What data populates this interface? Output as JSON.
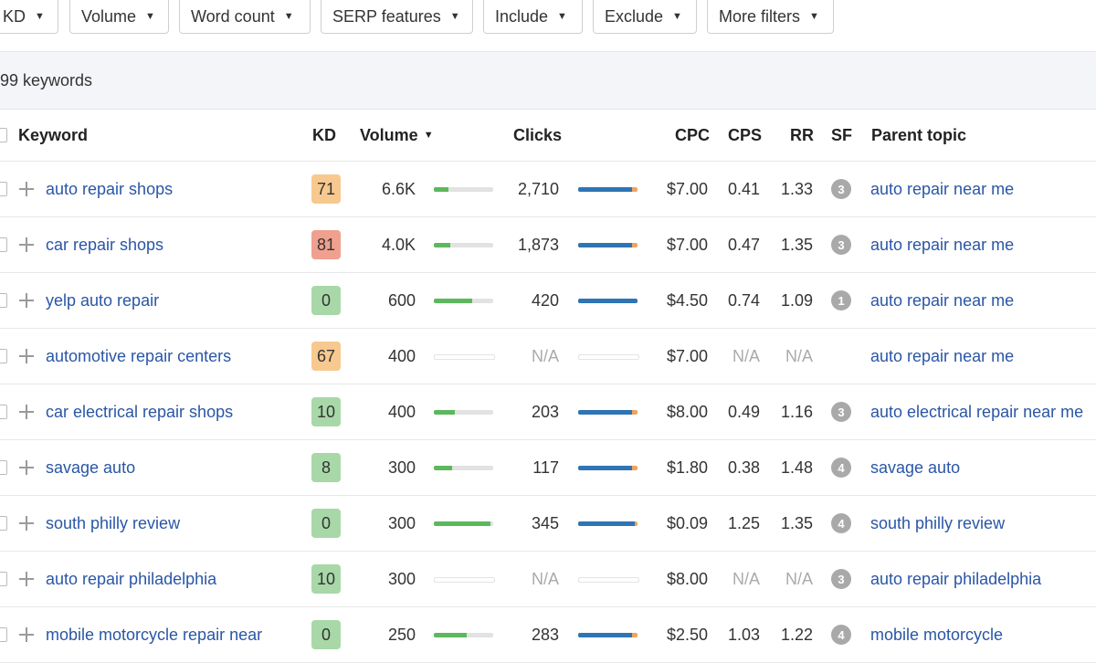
{
  "filters": [
    {
      "label": "KD",
      "name": "filter-kd"
    },
    {
      "label": "Volume",
      "name": "filter-volume"
    },
    {
      "label": "Word count",
      "name": "filter-word-count"
    },
    {
      "label": "SERP features",
      "name": "filter-serp-features"
    },
    {
      "label": "Include",
      "name": "filter-include"
    },
    {
      "label": "Exclude",
      "name": "filter-exclude"
    },
    {
      "label": "More filters",
      "name": "filter-more"
    }
  ],
  "count_label": "99 keywords",
  "headers": {
    "keyword": "Keyword",
    "kd": "KD",
    "volume": "Volume",
    "clicks": "Clicks",
    "cpc": "CPC",
    "cps": "CPS",
    "rr": "RR",
    "sf": "SF",
    "parent": "Parent topic"
  },
  "kd_colors": {
    "green": "#a8d8a8",
    "orange": "#f7c98e",
    "red": "#f0a08f"
  },
  "bar_colors": {
    "volume": "#5cb85c",
    "clicks_organic": "#2f74b5",
    "clicks_paid": "#f0a35c"
  },
  "rows": [
    {
      "keyword": "auto repair shops",
      "kd": "71",
      "kd_color": "#f7c98e",
      "volume": "6.6K",
      "volume_fill": 0.25,
      "clicks": "2,710",
      "clicks_organic": 0.9,
      "clicks_paid": 0.1,
      "cpc": "$7.00",
      "cps": "0.41",
      "rr": "1.33",
      "sf": "3",
      "parent": "auto repair near me"
    },
    {
      "keyword": "car repair shops",
      "kd": "81",
      "kd_color": "#f0a08f",
      "volume": "4.0K",
      "volume_fill": 0.28,
      "clicks": "1,873",
      "clicks_organic": 0.9,
      "clicks_paid": 0.1,
      "cpc": "$7.00",
      "cps": "0.47",
      "rr": "1.35",
      "sf": "3",
      "parent": "auto repair near me"
    },
    {
      "keyword": "yelp auto repair",
      "kd": "0",
      "kd_color": "#a8d8a8",
      "volume": "600",
      "volume_fill": 0.65,
      "clicks": "420",
      "clicks_organic": 1.0,
      "clicks_paid": 0.0,
      "cpc": "$4.50",
      "cps": "0.74",
      "rr": "1.09",
      "sf": "1",
      "parent": "auto repair near me"
    },
    {
      "keyword": "automotive repair centers",
      "kd": "67",
      "kd_color": "#f7c98e",
      "volume": "400",
      "volume_fill": 0,
      "clicks": "N/A",
      "clicks_organic": 0,
      "clicks_paid": 0,
      "cpc": "$7.00",
      "cps": "N/A",
      "rr": "N/A",
      "sf": "",
      "parent": "auto repair near me"
    },
    {
      "keyword": "car electrical repair shops",
      "kd": "10",
      "kd_color": "#a8d8a8",
      "volume": "400",
      "volume_fill": 0.35,
      "clicks": "203",
      "clicks_organic": 0.9,
      "clicks_paid": 0.1,
      "cpc": "$8.00",
      "cps": "0.49",
      "rr": "1.16",
      "sf": "3",
      "parent": "auto electrical repair near me"
    },
    {
      "keyword": "savage auto",
      "kd": "8",
      "kd_color": "#a8d8a8",
      "volume": "300",
      "volume_fill": 0.3,
      "clicks": "117",
      "clicks_organic": 0.9,
      "clicks_paid": 0.1,
      "cpc": "$1.80",
      "cps": "0.38",
      "rr": "1.48",
      "sf": "4",
      "parent": "savage auto"
    },
    {
      "keyword": "south philly review",
      "kd": "0",
      "kd_color": "#a8d8a8",
      "volume": "300",
      "volume_fill": 0.95,
      "clicks": "345",
      "clicks_organic": 0.95,
      "clicks_paid": 0.05,
      "cpc": "$0.09",
      "cps": "1.25",
      "rr": "1.35",
      "sf": "4",
      "parent": "south philly review"
    },
    {
      "keyword": "auto repair philadelphia",
      "kd": "10",
      "kd_color": "#a8d8a8",
      "volume": "300",
      "volume_fill": 0,
      "clicks": "N/A",
      "clicks_organic": 0,
      "clicks_paid": 0,
      "cpc": "$8.00",
      "cps": "N/A",
      "rr": "N/A",
      "sf": "3",
      "parent": "auto repair philadelphia"
    },
    {
      "keyword": "mobile motorcycle repair near",
      "kd": "0",
      "kd_color": "#a8d8a8",
      "volume": "250",
      "volume_fill": 0.55,
      "clicks": "283",
      "clicks_organic": 0.9,
      "clicks_paid": 0.1,
      "cpc": "$2.50",
      "cps": "1.03",
      "rr": "1.22",
      "sf": "4",
      "parent": "mobile motorcycle"
    }
  ]
}
